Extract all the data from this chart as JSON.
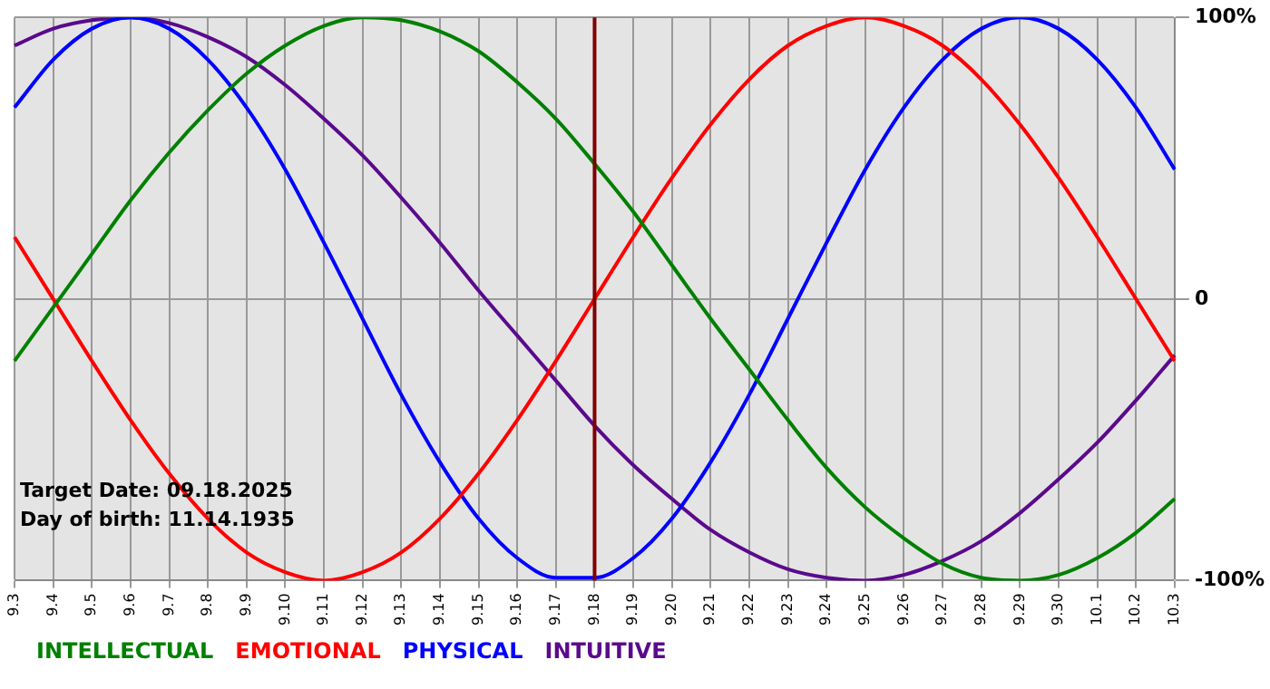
{
  "chart_data": {
    "type": "line",
    "categories": [
      "9.3",
      "9.4",
      "9.5",
      "9.6",
      "9.7",
      "9.8",
      "9.9",
      "9.10",
      "9.11",
      "9.12",
      "9.13",
      "9.14",
      "9.15",
      "9.16",
      "9.17",
      "9.18",
      "9.19",
      "9.20",
      "9.21",
      "9.22",
      "9.23",
      "9.24",
      "9.25",
      "9.26",
      "9.27",
      "9.28",
      "9.29",
      "9.30",
      "10.1",
      "10.2",
      "10.3"
    ],
    "series": [
      {
        "name": "INTELLECTUAL",
        "color": "#008000",
        "values": [
          -22,
          -3,
          16,
          35,
          52,
          67,
          80,
          90,
          97,
          100,
          99,
          95,
          88,
          77,
          64,
          48,
          31,
          12,
          -7,
          -25,
          -43,
          -60,
          -74,
          -85,
          -94,
          -99,
          -100,
          -98,
          -92,
          -83,
          -71
        ]
      },
      {
        "name": "EMOTIONAL",
        "color": "#ff0000",
        "values": [
          22,
          0,
          -22,
          -43,
          -62,
          -78,
          -90,
          -97,
          -100,
          -97,
          -90,
          -78,
          -62,
          -43,
          -22,
          0,
          22,
          43,
          62,
          78,
          90,
          97,
          100,
          97,
          90,
          78,
          62,
          43,
          22,
          0,
          -22
        ]
      },
      {
        "name": "PHYSICAL",
        "color": "#0000ff",
        "values": [
          68,
          85,
          96,
          100,
          96,
          85,
          68,
          46,
          20,
          -7,
          -34,
          -58,
          -78,
          -92,
          -99,
          -99,
          -92,
          -78,
          -58,
          -34,
          -7,
          20,
          46,
          68,
          85,
          96,
          100,
          96,
          85,
          68,
          46
        ]
      },
      {
        "name": "INTUITIVE",
        "color": "#5a0a8c",
        "values": [
          90,
          96,
          99,
          100,
          98,
          93,
          86,
          76,
          64,
          51,
          36,
          20,
          3,
          -13,
          -29,
          -45,
          -59,
          -71,
          -82,
          -90,
          -96,
          -99,
          -100,
          -98,
          -93,
          -86,
          -76,
          -64,
          -51,
          -36,
          -20
        ]
      }
    ],
    "ylim": [
      -100,
      100
    ],
    "yticks": [
      {
        "value": 100,
        "label": "100%"
      },
      0,
      {
        "value": -100,
        "label": "-100%"
      }
    ],
    "ref_lines": [
      {
        "axis": "x",
        "value": "9.18",
        "color": "#800000"
      }
    ],
    "annotations": [
      "Target Date: 09.18.2025",
      "Day of birth: 11.14.1935"
    ],
    "grid": true,
    "legend": "bottom left",
    "marker": "none"
  }
}
